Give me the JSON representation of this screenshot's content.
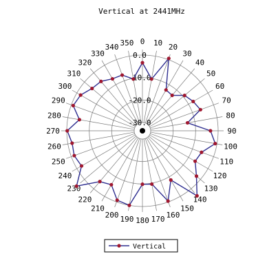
{
  "chart_data": {
    "type": "polar-line",
    "title": "Vertical at 2441MHz",
    "angle_step_deg": 10,
    "angle_ticks": [
      "0",
      "10",
      "20",
      "30",
      "40",
      "50",
      "60",
      "70",
      "80",
      "90",
      "100",
      "110",
      "120",
      "130",
      "140",
      "150",
      "160",
      "170",
      "180",
      "190",
      "200",
      "210",
      "220",
      "230",
      "240",
      "250",
      "260",
      "270",
      "280",
      "290",
      "300",
      "310",
      "320",
      "330",
      "340",
      "350"
    ],
    "radial_ticks": [
      "0.0",
      "-10.0",
      "-20.0",
      "-30.0"
    ],
    "radial_range": [
      -30,
      0
    ],
    "series": [
      {
        "name": "Vertical",
        "color": "#2d2d8f",
        "marker_color": "#a01830",
        "angles": [
          0,
          10,
          20,
          30,
          40,
          50,
          60,
          70,
          80,
          90,
          100,
          110,
          120,
          130,
          140,
          150,
          160,
          170,
          180,
          190,
          200,
          210,
          220,
          230,
          240,
          250,
          260,
          270,
          280,
          290,
          300,
          310,
          320,
          330,
          340,
          350
        ],
        "values": [
          -3.4,
          -10.3,
          0.6,
          -12.7,
          -13.1,
          -9.2,
          -7.6,
          -6.2,
          -13.3,
          -3.4,
          -0.8,
          -5.7,
          -6.6,
          -2.3,
          4.1,
          -8.4,
          -0.4,
          -9.6,
          -9.9,
          0.0,
          -0.8,
          -6.0,
          -4.2,
          4.6,
          -2.4,
          -1.4,
          -1.9,
          -0.2,
          -5.2,
          -0.9,
          -1.9,
          -4.4,
          -5.0,
          -7.0,
          -7.3,
          -10.3
        ]
      }
    ],
    "legend": {
      "position": "bottom",
      "label": "Vertical"
    },
    "grid": true
  }
}
